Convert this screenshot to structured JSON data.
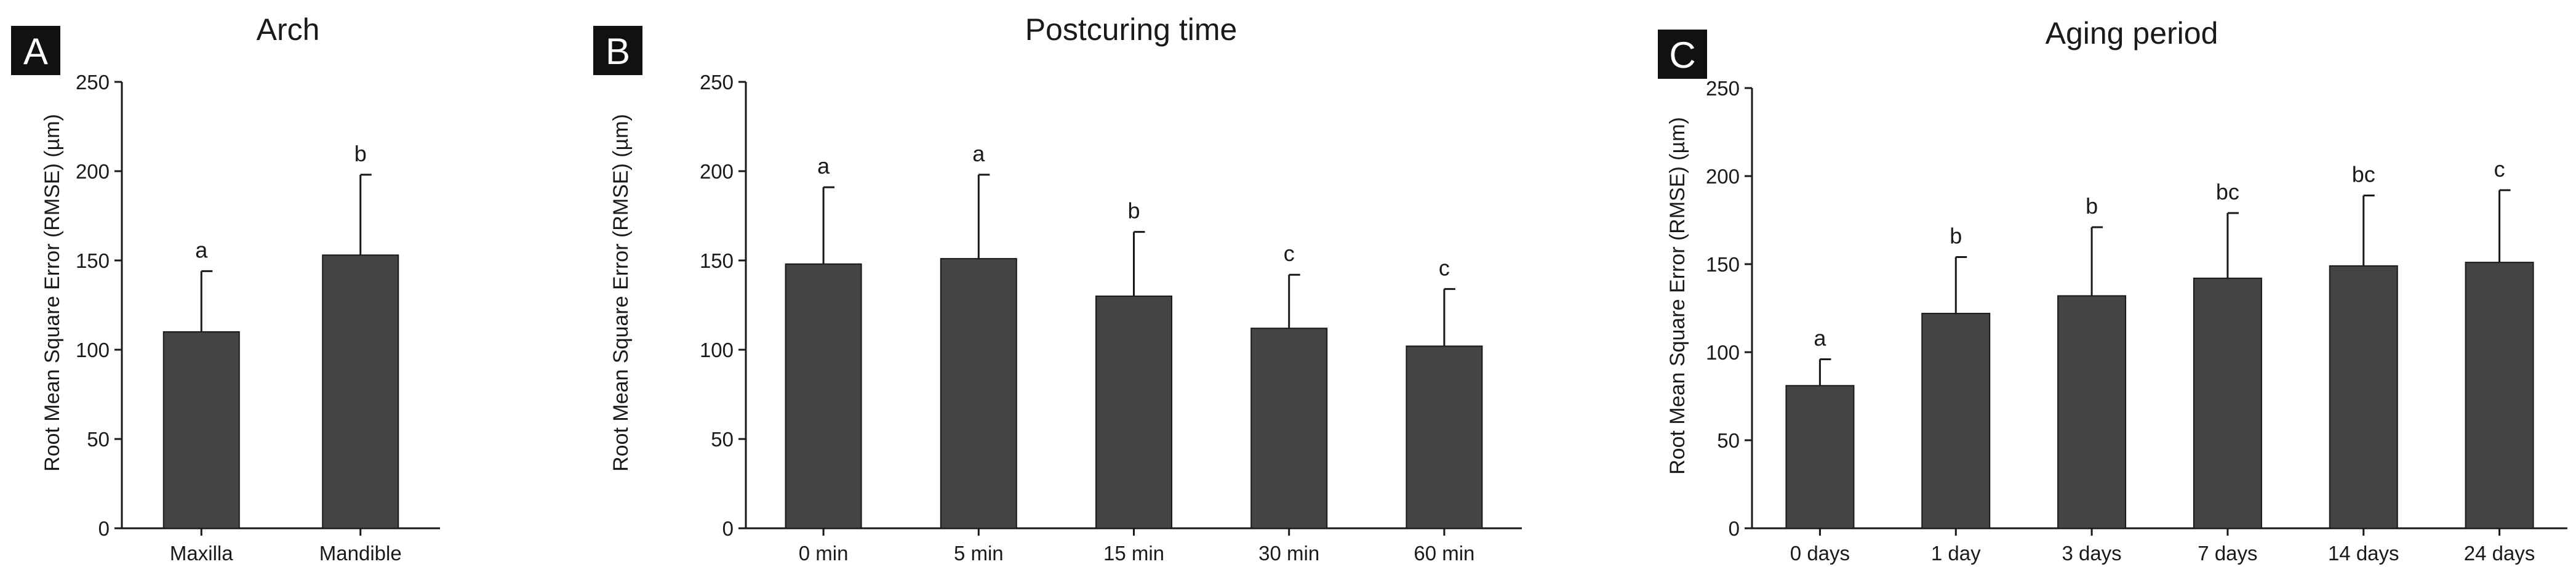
{
  "chart_data": [
    {
      "type": "bar",
      "panel_label": "A",
      "title": "Arch",
      "ylabel": "Root Mean Square Error (RMSE) (µm)",
      "ylim": [
        0,
        250
      ],
      "yticks": [
        0,
        50,
        100,
        150,
        200,
        250
      ],
      "categories": [
        "Maxilla",
        "Mandible"
      ],
      "values": [
        110,
        153
      ],
      "errors": [
        34,
        45
      ],
      "significance": [
        "a",
        "b"
      ],
      "bar_color": "#444444"
    },
    {
      "type": "bar",
      "panel_label": "B",
      "title": "Postcuring time",
      "ylabel": "Root Mean Square Error (RMSE) (µm)",
      "ylim": [
        0,
        250
      ],
      "yticks": [
        0,
        50,
        100,
        150,
        200,
        250
      ],
      "categories": [
        "0 min",
        "5 min",
        "15 min",
        "30 min",
        "60 min"
      ],
      "values": [
        148,
        151,
        130,
        112,
        102
      ],
      "errors": [
        43,
        47,
        36,
        30,
        32
      ],
      "significance": [
        "a",
        "a",
        "b",
        "c",
        "c"
      ],
      "bar_color": "#444444"
    },
    {
      "type": "bar",
      "panel_label": "C",
      "title": "Aging period",
      "ylabel": "Root Mean Square Error (RMSE) (µm)",
      "ylim": [
        0,
        250
      ],
      "yticks": [
        0,
        50,
        100,
        150,
        200,
        250
      ],
      "categories": [
        "0 days",
        "1 day",
        "3 days",
        "7 days",
        "14 days",
        "24 days"
      ],
      "values": [
        81,
        122,
        132,
        142,
        149,
        151
      ],
      "errors": [
        15,
        32,
        39,
        37,
        40,
        41
      ],
      "significance": [
        "a",
        "b",
        "b",
        "bc",
        "bc",
        "c"
      ],
      "bar_color": "#444444"
    }
  ]
}
